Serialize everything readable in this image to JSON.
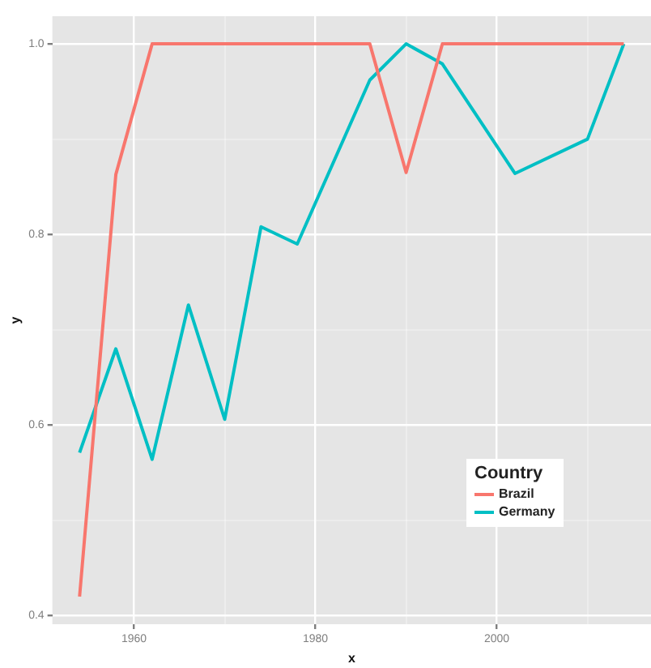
{
  "chart_data": {
    "type": "line",
    "xlabel": "x",
    "ylabel": "y",
    "legend_title": "Country",
    "legend": "right",
    "grid": true,
    "marker": "none",
    "line_style": "solid",
    "xlim": [
      1951,
      2017
    ],
    "xticks": [
      1960,
      {
        "value": 1970,
        "label": null
      },
      1980,
      {
        "value": 1990,
        "label": null
      },
      2000,
      {
        "value": 2010,
        "label": null
      }
    ],
    "ylim": [
      0.391,
      1.029
    ],
    "yticks": [
      0.4,
      {
        "value": 0.5,
        "label": null
      },
      0.6,
      {
        "value": 0.7,
        "label": null
      },
      0.8,
      {
        "value": 0.9,
        "label": null
      },
      {
        "value": 1.0,
        "label": "1.0"
      }
    ],
    "series": [
      {
        "name": "Brazil",
        "color": "#f8766d",
        "x": [
          1954,
          1958,
          1962,
          1986,
          1990,
          1994,
          2014
        ],
        "values": [
          0.42,
          0.863,
          1.0,
          1.0,
          0.865,
          1.0,
          1.0
        ]
      },
      {
        "name": "Germany",
        "color": "#00bfc4",
        "x": [
          1954,
          1958,
          1962,
          1966,
          1970,
          1974,
          1978,
          1986,
          1990,
          1994,
          2002,
          2010,
          2014
        ],
        "values": [
          0.571,
          0.68,
          0.564,
          0.726,
          0.606,
          0.808,
          0.79,
          0.962,
          1.0,
          0.979,
          0.864,
          0.9,
          1.0
        ]
      }
    ]
  }
}
